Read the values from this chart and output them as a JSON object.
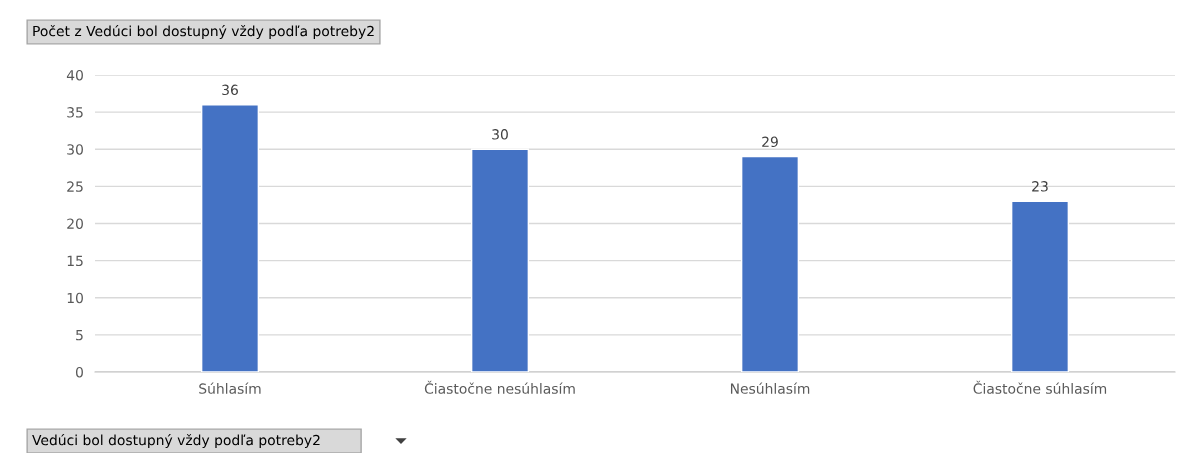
{
  "chart_data": {
    "type": "bar",
    "title": "Počet z Vedúci bol dostupný vždy podľa potreby2",
    "xlabel": "Vedúci bol dostupný vždy podľa potreby2",
    "categories": [
      "Súhlasím",
      "Čiastočne nesúhlasím",
      "Nesúhlasím",
      "Čiastočne súhlasím"
    ],
    "values": [
      36,
      30,
      29,
      23
    ],
    "color": "#4472c4",
    "ylim": [
      0,
      40
    ],
    "yticks": [
      0,
      5,
      10,
      15,
      20,
      25,
      30,
      35,
      40
    ],
    "grid": "y",
    "data_labels": true
  }
}
